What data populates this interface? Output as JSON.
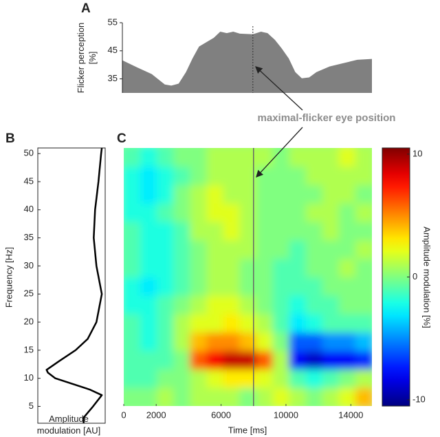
{
  "chart_data": [
    {
      "type": "area",
      "panel": "A",
      "ylabel": "Flicker perception [%]",
      "color": "#808080",
      "x": [
        0,
        900,
        1800,
        2600,
        3000,
        3450,
        3900,
        4300,
        4700,
        5100,
        5600,
        6000,
        6400,
        6800,
        7200,
        8000,
        8500,
        8900,
        9350,
        9750,
        10200,
        10600,
        11000,
        11450,
        11900,
        12700,
        13550,
        14400,
        15300
      ],
      "values": [
        41.6,
        39.1,
        36.7,
        33.0,
        32.6,
        33.3,
        37.4,
        42.3,
        46.5,
        47.9,
        49.6,
        51.8,
        51.3,
        51.8,
        51.1,
        50.9,
        51.8,
        51.3,
        48.9,
        46.0,
        42.3,
        37.4,
        35.2,
        35.5,
        37.4,
        39.4,
        40.6,
        41.8,
        42.1
      ],
      "xlim": [
        0,
        15300
      ],
      "ylim": [
        30,
        55
      ],
      "yticks": [
        35,
        45,
        55
      ],
      "vline": 8000,
      "annotation": "maximal-flicker eye position"
    },
    {
      "type": "line",
      "panel": "B",
      "ylabel": "Frequency [Hz]",
      "xlabel": "Amplitude modulation [AU]",
      "color": "#000000",
      "y": [
        51,
        50,
        45,
        40,
        35,
        30,
        25,
        20,
        17,
        15,
        13,
        11.5,
        11,
        10,
        8,
        7,
        5,
        3,
        2
      ],
      "values": [
        0.95,
        0.94,
        0.9,
        0.85,
        0.83,
        0.87,
        0.95,
        0.87,
        0.74,
        0.56,
        0.31,
        0.13,
        0.15,
        0.26,
        0.77,
        0.95,
        0.82,
        0.68,
        0.68
      ],
      "xlim": [
        0,
        1
      ],
      "ylim": [
        2,
        51
      ],
      "yticks": [
        5,
        10,
        15,
        20,
        25,
        30,
        35,
        40,
        45,
        50
      ]
    },
    {
      "type": "heatmap",
      "panel": "C",
      "xlabel": "Time [ms]",
      "colorbar_label": "Amplitude modulation [%]",
      "colormap": "jet",
      "xbins": [
        0,
        1020,
        2040,
        3060,
        4080,
        5100,
        6120,
        7140,
        8160,
        9180,
        10200,
        11220,
        12240,
        13260,
        14280,
        15300
      ],
      "ybins": [
        2,
        5.5,
        9,
        12.5,
        16,
        19.5,
        23,
        26.5,
        30,
        33.5,
        37,
        40.5,
        44,
        47.5,
        51
      ],
      "values": [
        [
          0,
          0,
          1,
          0,
          1,
          1,
          1,
          0,
          1,
          2,
          1,
          0,
          1,
          2,
          4
        ],
        [
          -1,
          -1,
          0,
          0,
          1,
          2,
          3,
          3,
          2,
          1,
          -1,
          -2,
          -1,
          0,
          1
        ],
        [
          -1,
          -1,
          -1,
          0,
          6,
          8,
          9,
          9,
          6,
          1,
          -8,
          -9,
          -8,
          -8,
          -7
        ],
        [
          -1,
          -2,
          -1,
          1,
          4,
          5,
          5,
          4,
          2,
          0,
          -6,
          -6,
          -5,
          -5,
          -4
        ],
        [
          -1,
          -2,
          -1,
          1,
          2,
          2,
          3,
          2,
          1,
          -1,
          -3,
          -2,
          -1,
          -1,
          -1
        ],
        [
          -2,
          -2,
          -1,
          0,
          1,
          2,
          2,
          1,
          0,
          -1,
          -2,
          -1,
          -1,
          0,
          0
        ],
        [
          -2,
          -3,
          -2,
          -1,
          0,
          1,
          1,
          0,
          0,
          -1,
          -1,
          -1,
          0,
          0,
          0
        ],
        [
          -1,
          -2,
          -2,
          -1,
          0,
          1,
          1,
          0,
          0,
          -1,
          -1,
          0,
          0,
          1,
          0
        ],
        [
          -1,
          -2,
          -2,
          -1,
          0,
          1,
          1,
          1,
          0,
          0,
          -1,
          0,
          0,
          0,
          1
        ],
        [
          -1,
          -2,
          -2,
          -1,
          1,
          1,
          2,
          1,
          0,
          0,
          0,
          0,
          1,
          0,
          0
        ],
        [
          -2,
          -2,
          -1,
          0,
          1,
          2,
          2,
          1,
          0,
          0,
          0,
          1,
          1,
          0,
          1
        ],
        [
          -2,
          -3,
          -2,
          0,
          1,
          2,
          1,
          1,
          0,
          0,
          0,
          0,
          1,
          1,
          0
        ],
        [
          -2,
          -3,
          -2,
          -1,
          0,
          1,
          1,
          1,
          0,
          0,
          0,
          1,
          1,
          1,
          1
        ],
        [
          -1,
          -2,
          -1,
          0,
          0,
          1,
          1,
          1,
          1,
          0,
          1,
          1,
          1,
          2,
          1
        ]
      ],
      "xlim": [
        0,
        15300
      ],
      "ylim": [
        2,
        51
      ],
      "xticks": [
        0,
        2000,
        6000,
        10000,
        14000
      ],
      "clim": [
        -10.5,
        10.5
      ],
      "cticks": [
        -10,
        0,
        10
      ],
      "vline": 8000
    }
  ]
}
